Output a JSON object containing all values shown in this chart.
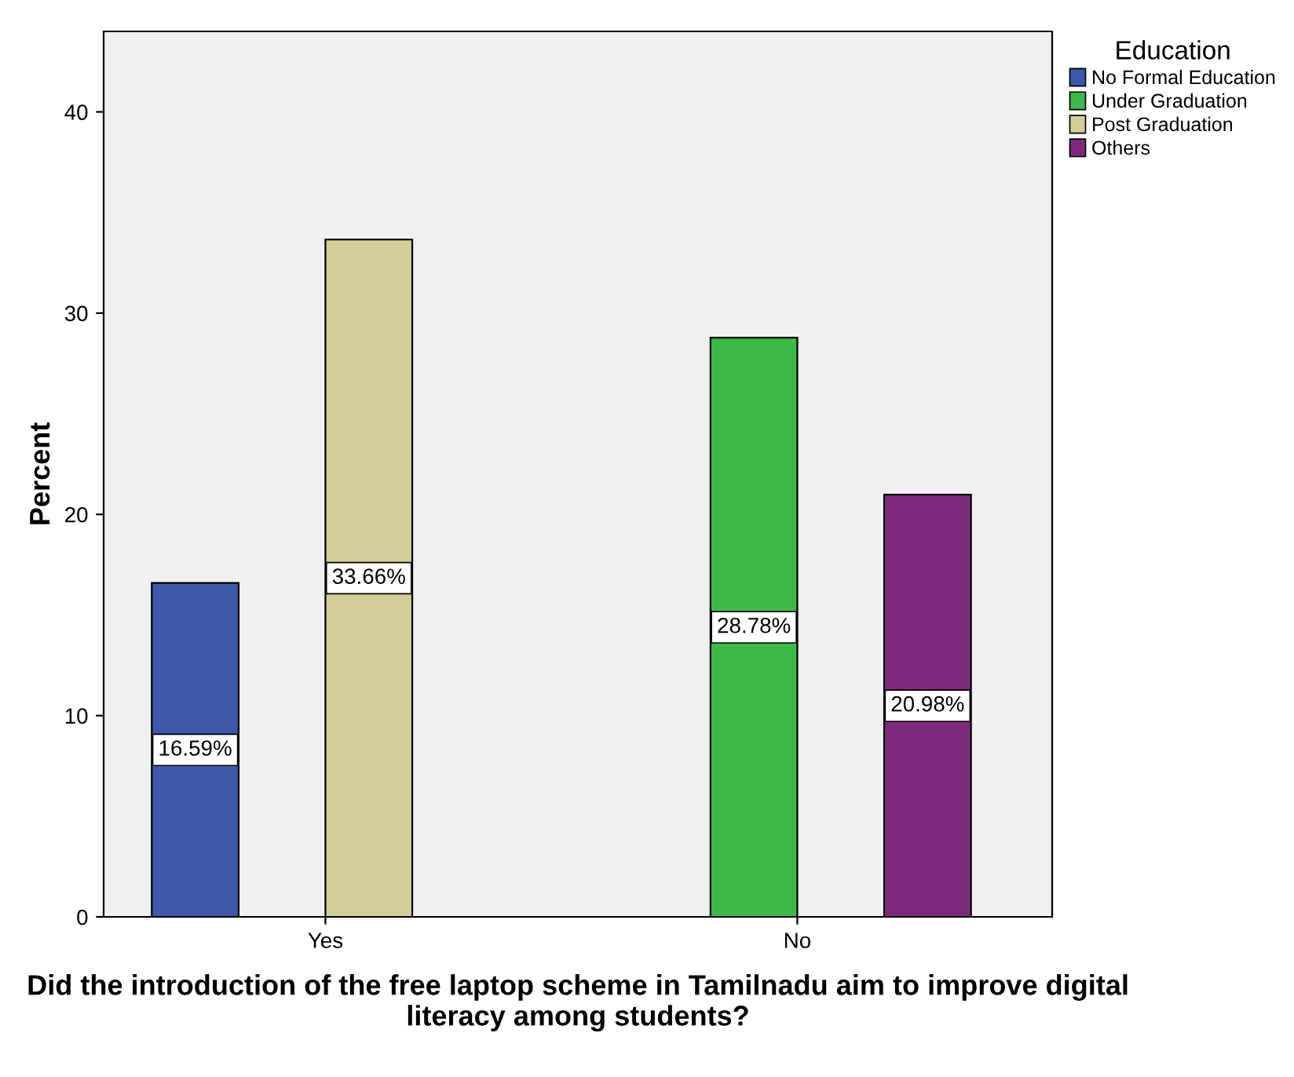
{
  "chart_data": {
    "type": "bar",
    "xlabel": "Did the introduction of the free laptop scheme in Tamilnadu aim to improve digital literacy among students?",
    "ylabel": "Percent",
    "legend_title": "Education",
    "categories": [
      "Yes",
      "No"
    ],
    "series": [
      {
        "name": "No Formal Education",
        "color": "#3e58ac",
        "values": [
          16.59,
          null
        ],
        "value_labels": [
          "16.59%",
          null
        ]
      },
      {
        "name": "Under Graduation",
        "color": "#3cb94a",
        "values": [
          null,
          28.78
        ],
        "value_labels": [
          null,
          "28.78%"
        ]
      },
      {
        "name": "Post Graduation",
        "color": "#d3ce97",
        "values": [
          33.66,
          null
        ],
        "value_labels": [
          "33.66%",
          null
        ]
      },
      {
        "name": "Others",
        "color": "#7e2a7c",
        "values": [
          null,
          20.98
        ],
        "value_labels": [
          null,
          "20.98%"
        ]
      }
    ],
    "ylim": [
      0,
      44
    ],
    "yticks": [
      0,
      10,
      20,
      30,
      40
    ],
    "grid": false,
    "legend": "top right"
  }
}
